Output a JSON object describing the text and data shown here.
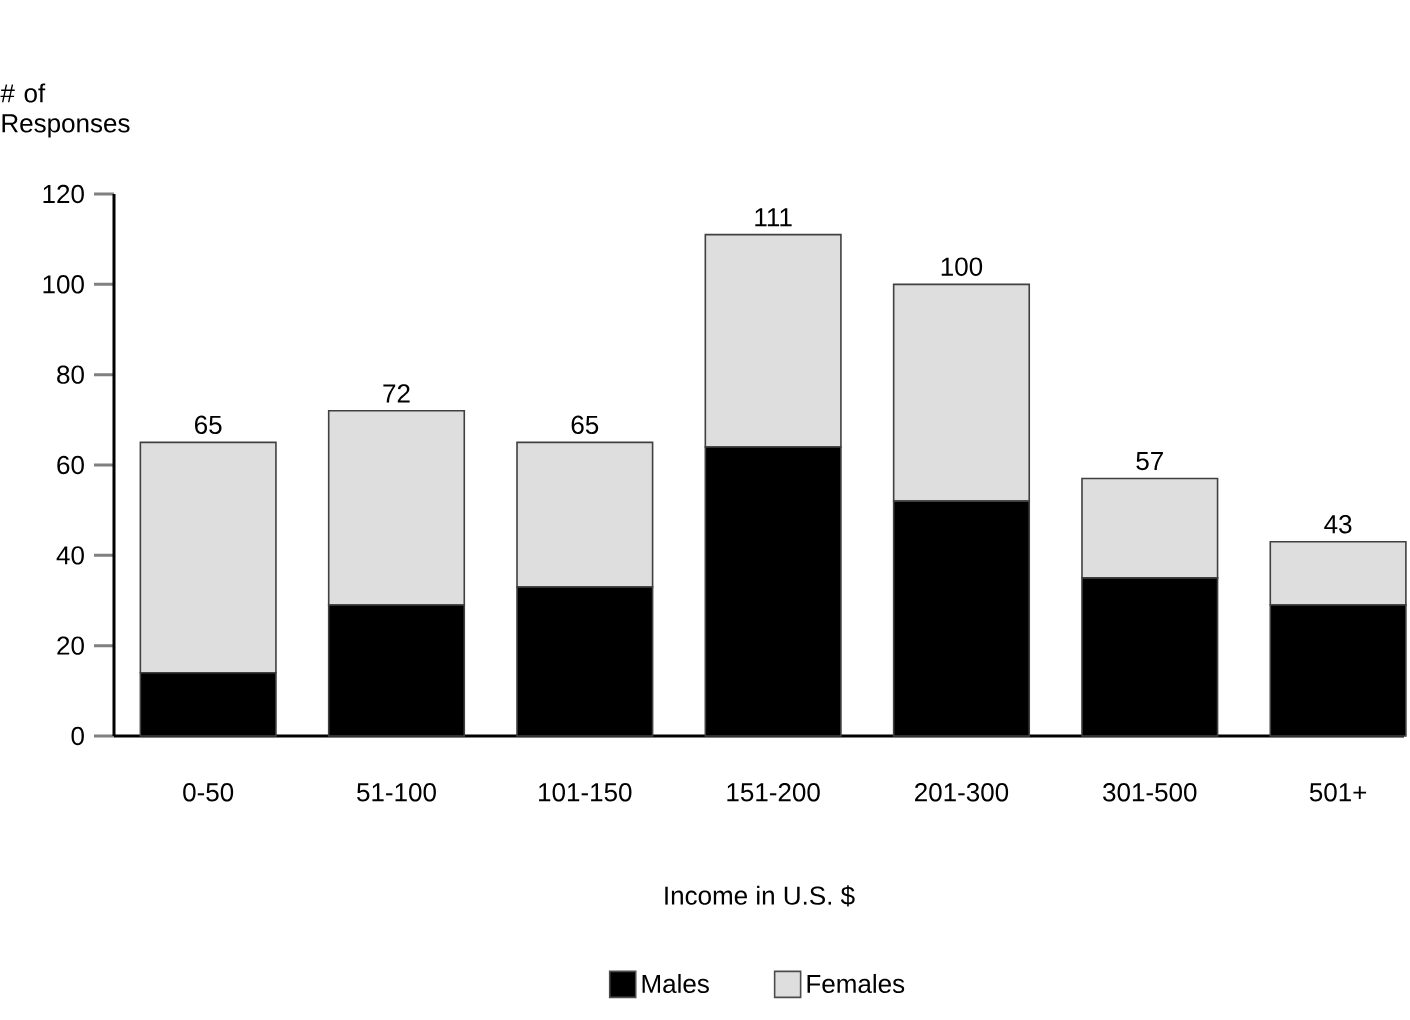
{
  "chart_data": {
    "type": "bar",
    "stacked": true,
    "xlabel": "Income in U.S. $",
    "ylabel": "# of Responses",
    "categories": [
      "0-50",
      "51-100",
      "101-150",
      "151-200",
      "201-300",
      "301-500",
      "501+"
    ],
    "series": [
      {
        "name": "Males",
        "color": "#000000",
        "values": [
          14,
          29,
          33,
          64,
          52,
          35,
          29
        ]
      },
      {
        "name": "Females",
        "color": "#dedede",
        "values": [
          51,
          43,
          32,
          47,
          48,
          22,
          14
        ]
      }
    ],
    "totals": [
      "65",
      "72",
      "65",
      "111",
      "100",
      "57",
      "43"
    ],
    "ylim": [
      0,
      120
    ],
    "yticks": [
      0,
      20,
      40,
      60,
      80,
      100,
      120
    ],
    "legend": "bottom"
  }
}
